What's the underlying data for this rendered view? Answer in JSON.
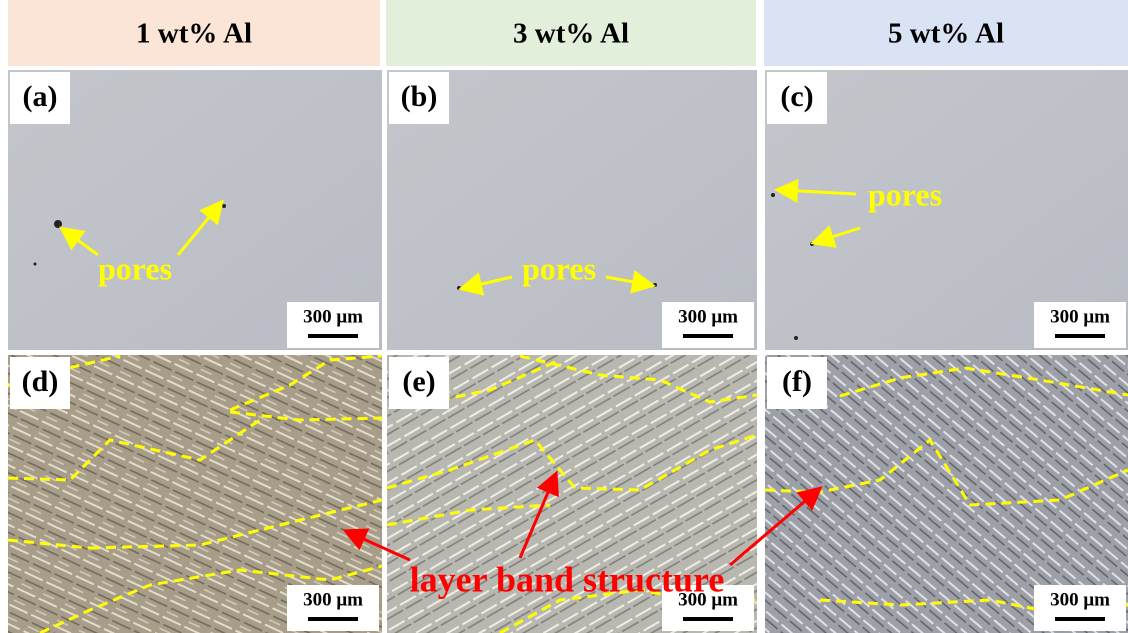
{
  "columns": [
    {
      "title": "1 wt% Al"
    },
    {
      "title": "3 wt% Al"
    },
    {
      "title": "5 wt% Al"
    }
  ],
  "panels": [
    {
      "label": "(a)",
      "scale_bar": "300 μm",
      "annotation": "pores"
    },
    {
      "label": "(b)",
      "scale_bar": "300 μm",
      "annotation": "pores"
    },
    {
      "label": "(c)",
      "scale_bar": "300 μm",
      "annotation": "pores"
    },
    {
      "label": "(d)",
      "scale_bar": "300 μm"
    },
    {
      "label": "(e)",
      "scale_bar": "300 μm"
    },
    {
      "label": "(f)",
      "scale_bar": "300 μm"
    }
  ],
  "shared_annotation": "layer band structure"
}
